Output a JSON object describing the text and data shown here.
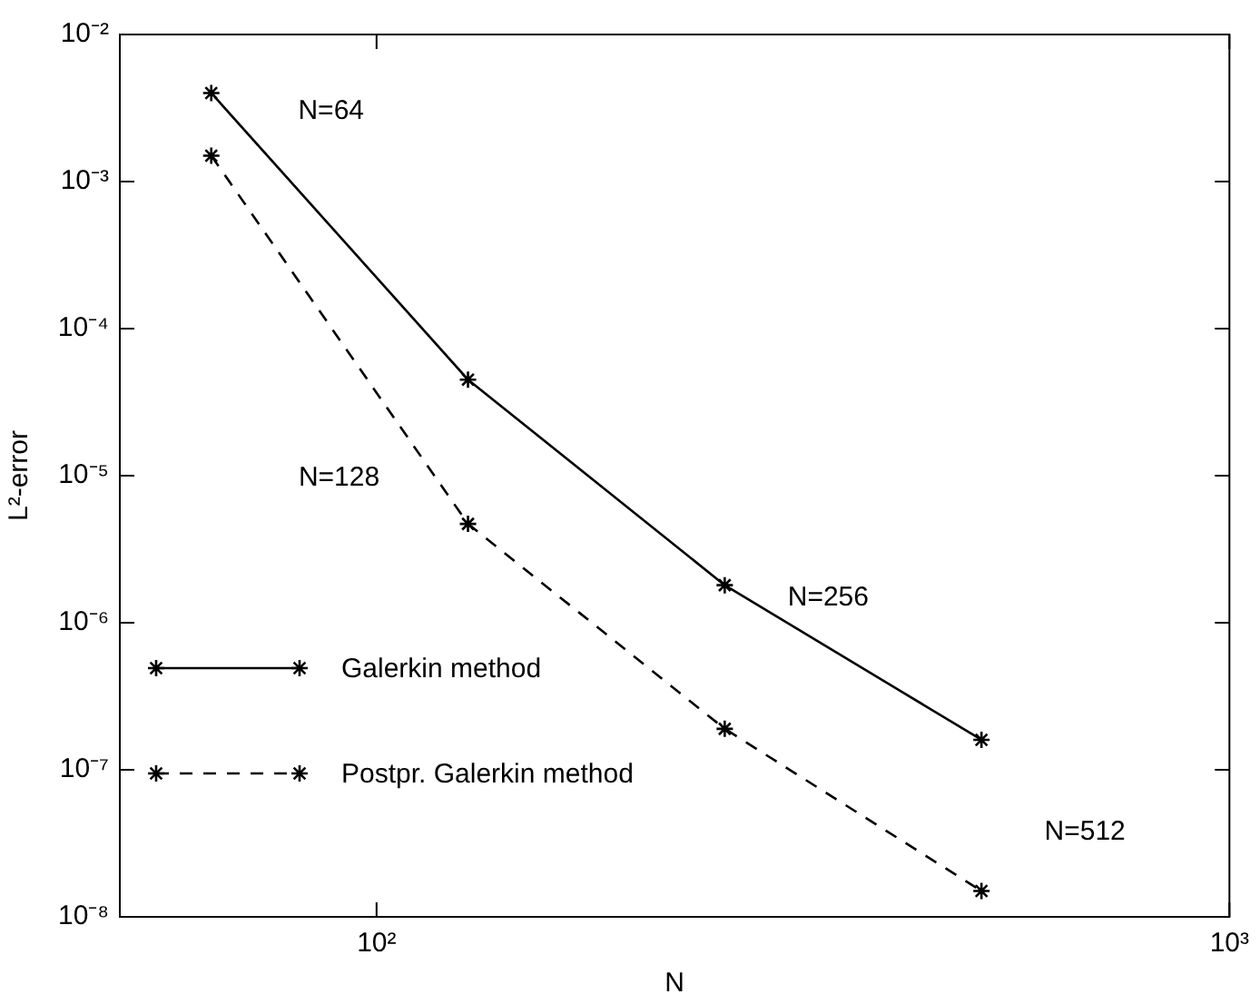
{
  "chart_data": {
    "type": "line",
    "xlabel": "N",
    "ylabel": "L²-error",
    "log": "xy",
    "marker": "cross",
    "legend": "bottom left",
    "grid": false,
    "x": [
      64,
      128,
      256,
      512
    ],
    "series": [
      {
        "name": "Galerkin method",
        "color": "#000000",
        "line_style": "solid",
        "values": [
          0.004,
          4.5e-05,
          1.8e-06,
          1.6e-07
        ]
      },
      {
        "name": "Postpr. Galerkin method",
        "color": "#000000",
        "line_style": "dashed",
        "values": [
          0.0015,
          4.7e-06,
          1.9e-07,
          1.5e-08
        ]
      }
    ],
    "xlim": [
      50,
      1000
    ],
    "xticks": [
      {
        "value": 100,
        "label": "10²"
      },
      {
        "value": 1000,
        "label": "10³"
      }
    ],
    "ylim": [
      1e-08,
      0.01
    ],
    "yticks": [
      {
        "value": 1e-08,
        "label": "10⁻⁸"
      },
      {
        "value": 1e-07,
        "label": "10⁻⁷"
      },
      {
        "value": 1e-06,
        "label": "10⁻⁶"
      },
      {
        "value": 1e-05,
        "label": "10⁻⁵"
      },
      {
        "value": 0.0001,
        "label": "10⁻⁴"
      },
      {
        "value": 0.001,
        "label": "10⁻³"
      },
      {
        "value": 0.01,
        "label": "10⁻²"
      }
    ],
    "annotations": [
      "N=64",
      "N=128",
      "N=256",
      "N=512"
    ]
  }
}
